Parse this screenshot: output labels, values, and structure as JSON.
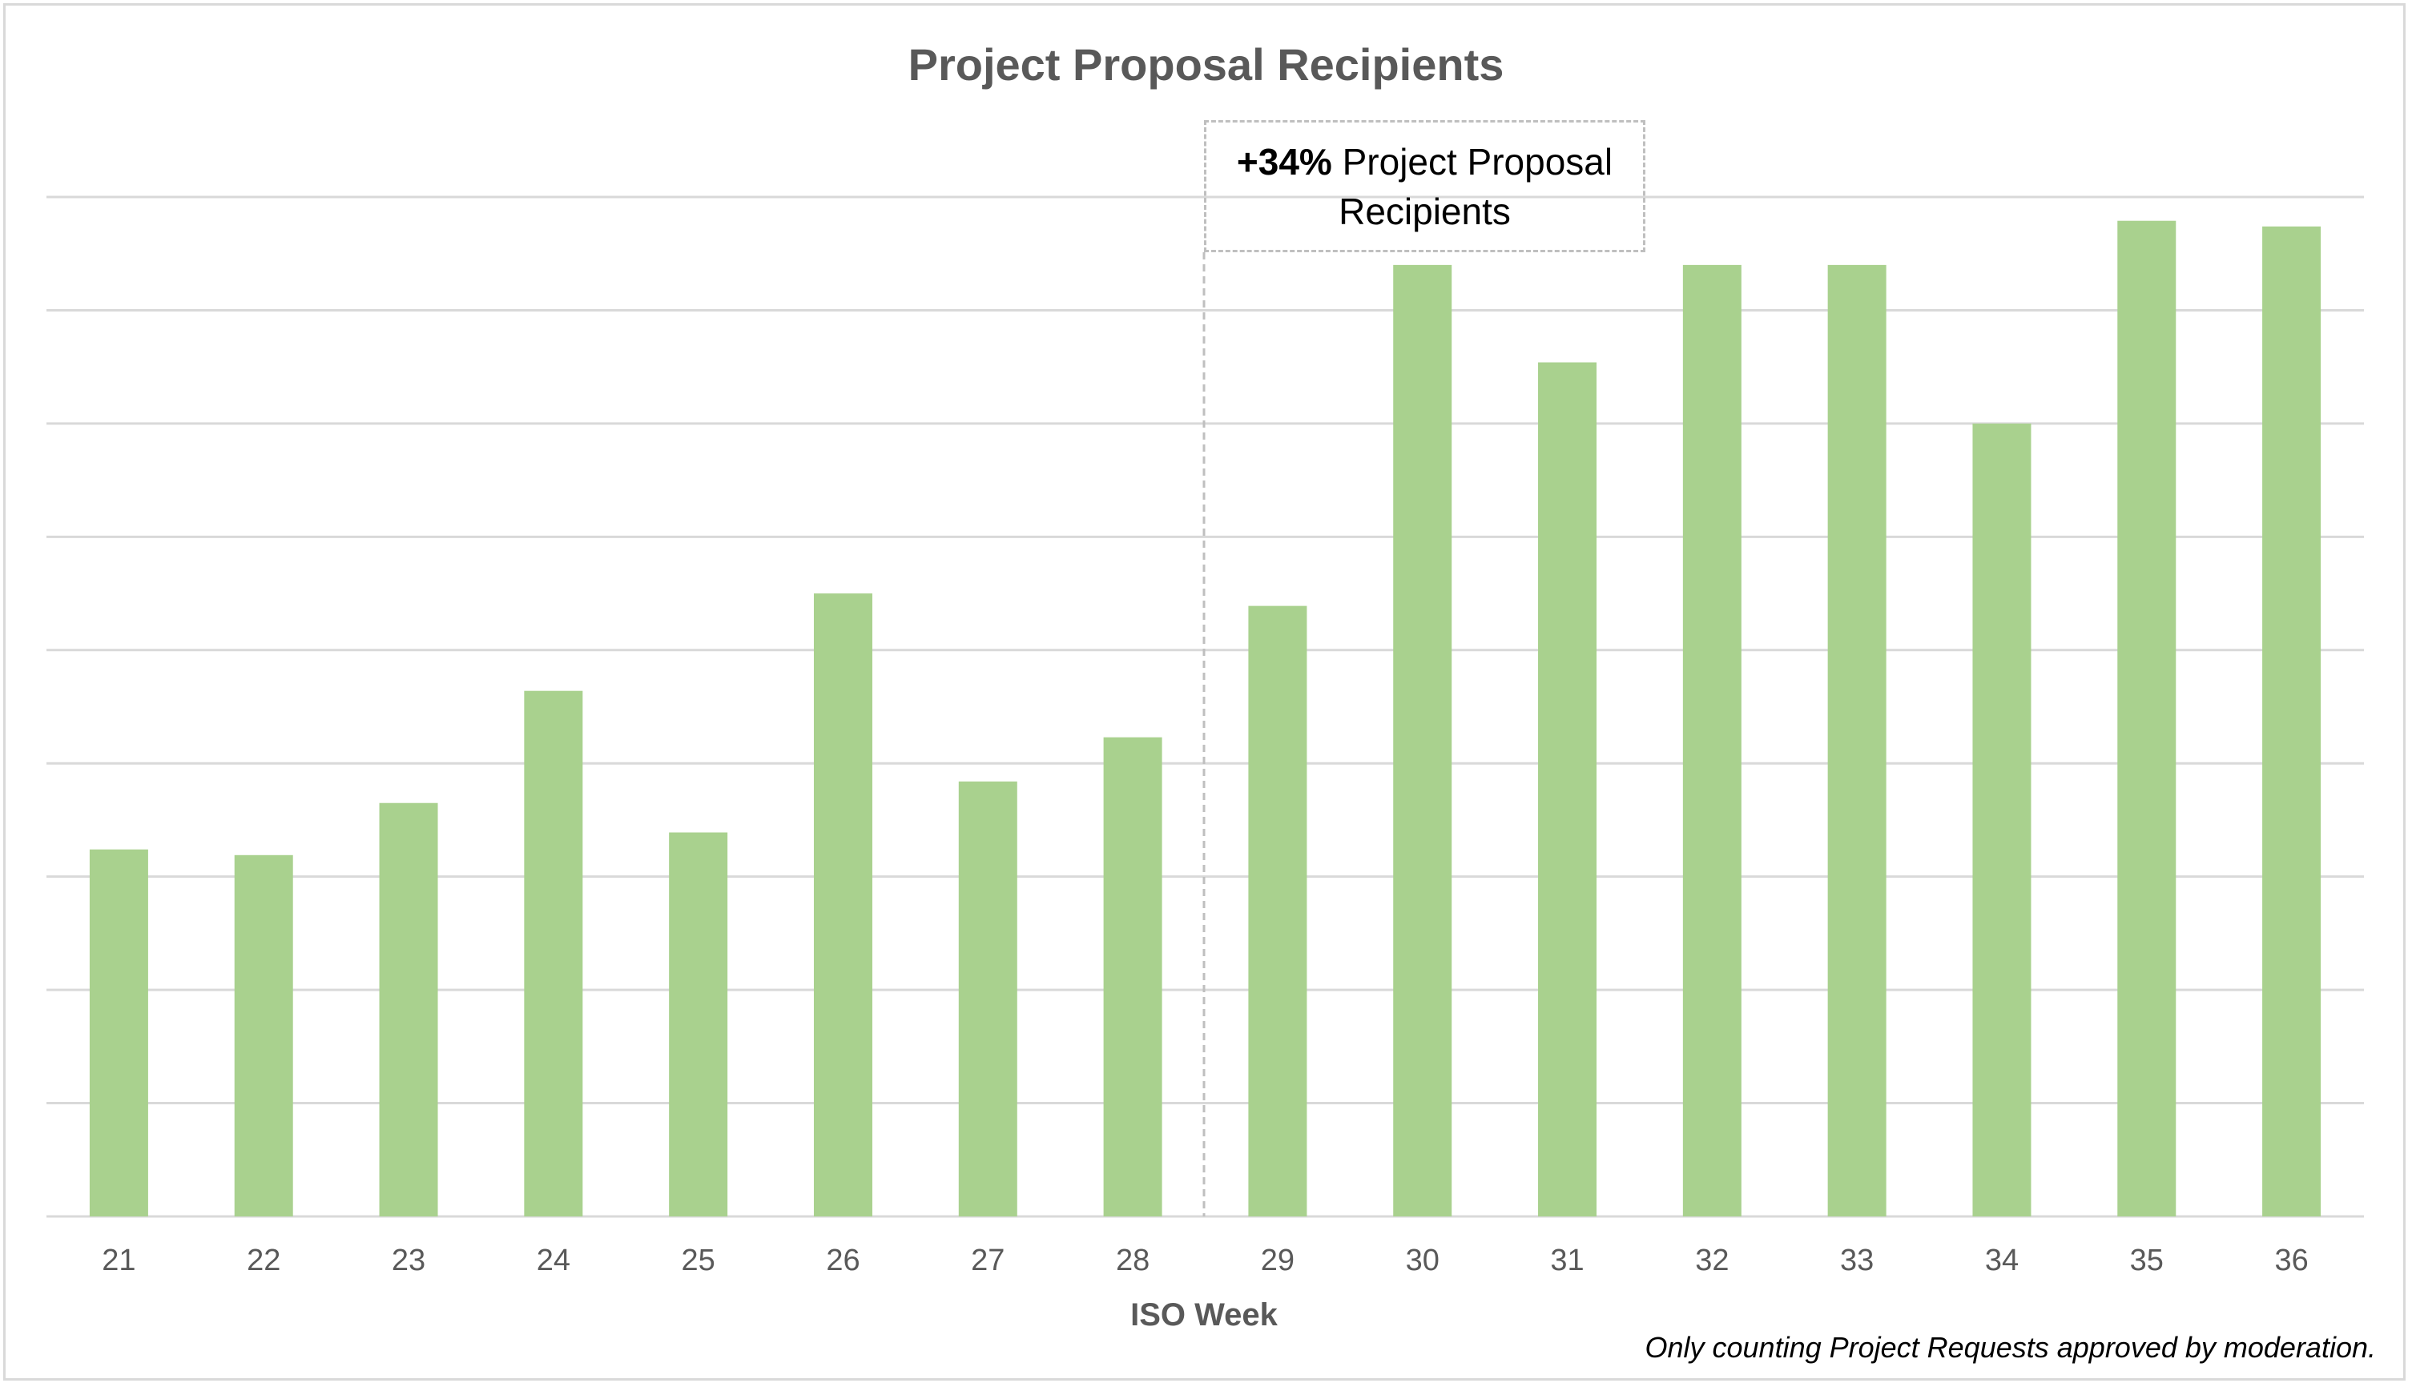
{
  "chart_data": {
    "type": "bar",
    "title": "Project Proposal Recipients",
    "xlabel": "ISO Week",
    "ylabel": "",
    "categories": [
      "21",
      "22",
      "23",
      "24",
      "25",
      "26",
      "27",
      "28",
      "29",
      "30",
      "31",
      "32",
      "33",
      "34",
      "35",
      "36"
    ],
    "values": [
      3.24,
      3.19,
      3.65,
      4.64,
      3.39,
      5.5,
      3.84,
      4.23,
      5.39,
      8.4,
      7.54,
      8.4,
      8.4,
      7.0,
      8.79,
      8.74
    ],
    "value_units": "gridline intervals (y-axis labels hidden)",
    "ylim": [
      0,
      9
    ],
    "grid": true,
    "bar_color": "#a9d18e",
    "annotation": {
      "bold": "+34%",
      "text": "Project Proposal Recipients",
      "divider_after_category": "28"
    },
    "footnote": "Only counting Project Requests approved by moderation."
  }
}
